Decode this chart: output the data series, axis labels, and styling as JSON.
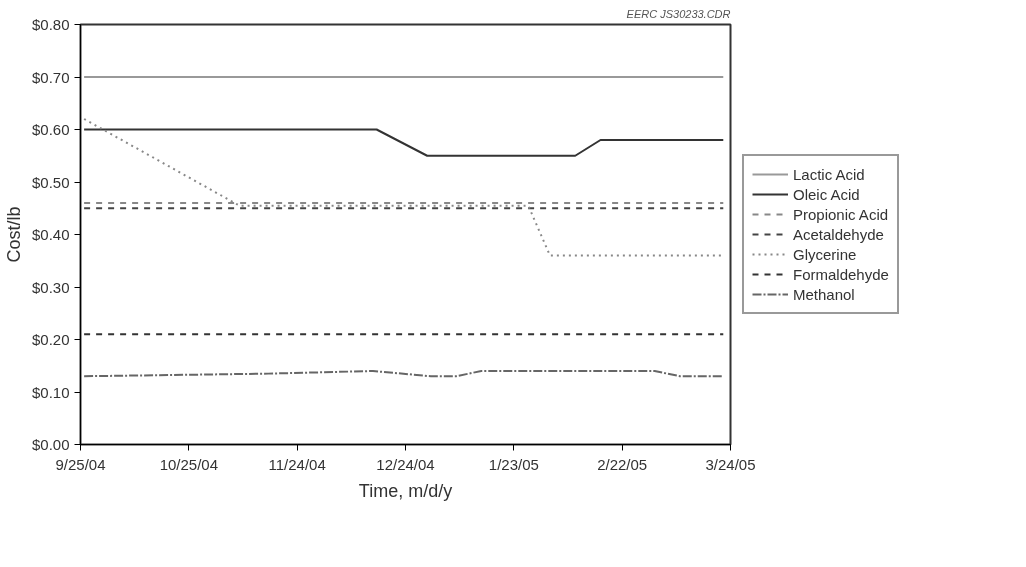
{
  "chart_data": {
    "type": "line",
    "xlabel": "Time, m/d/y",
    "ylabel": "Cost/lb",
    "annotations": [
      "EERC JS30233.CDR"
    ],
    "xlim": [
      "2004-09-25",
      "2005-03-24"
    ],
    "xticks": [
      {
        "value": "2004-09-25",
        "label": "9/25/04"
      },
      {
        "value": "2004-10-25",
        "label": "10/25/04"
      },
      {
        "value": "2004-11-24",
        "label": "11/24/04"
      },
      {
        "value": "2004-12-24",
        "label": "12/24/04"
      },
      {
        "value": "2005-01-23",
        "label": "1/23/05"
      },
      {
        "value": "2005-02-22",
        "label": "2/22/05"
      },
      {
        "value": "2005-03-24",
        "label": "3/24/05"
      }
    ],
    "ylim": [
      0,
      0.8
    ],
    "yticks": [
      {
        "value": 0,
        "label": "$0.00"
      },
      {
        "value": 0.1,
        "label": "$0.10"
      },
      {
        "value": 0.2,
        "label": "$0.20"
      },
      {
        "value": 0.3,
        "label": "$0.30"
      },
      {
        "value": 0.4,
        "label": "$0.40"
      },
      {
        "value": 0.5,
        "label": "$0.50"
      },
      {
        "value": 0.6,
        "label": "$0.60"
      },
      {
        "value": 0.7,
        "label": "$0.70"
      },
      {
        "value": 0.8,
        "label": "$0.80"
      }
    ],
    "grid": false,
    "legend": "right",
    "marker": "none",
    "series": [
      {
        "name": "Lactic Acid",
        "color": "#999999",
        "line_style": "solid",
        "x": [
          "2004-09-26",
          "2005-03-22"
        ],
        "values": [
          0.7,
          0.7
        ]
      },
      {
        "name": "Oleic Acid",
        "color": "#333333",
        "line_style": "solid",
        "x": [
          "2004-09-26",
          "2004-12-16",
          "2004-12-30",
          "2005-02-09",
          "2005-02-16",
          "2005-03-22"
        ],
        "values": [
          0.6,
          0.6,
          0.55,
          0.55,
          0.58,
          0.58
        ]
      },
      {
        "name": "Propionic Acid",
        "color": "#888888",
        "line_style": "dashed",
        "x": [
          "2004-09-26",
          "2005-03-22"
        ],
        "values": [
          0.46,
          0.46
        ]
      },
      {
        "name": "Acetaldehyde",
        "color": "#444444",
        "line_style": "dashed",
        "x": [
          "2004-09-26",
          "2005-03-22"
        ],
        "values": [
          0.45,
          0.45
        ]
      },
      {
        "name": "Glycerine",
        "color": "#888888",
        "line_style": "dotted",
        "x": [
          "2004-09-26",
          "2004-11-08",
          "2005-01-27",
          "2005-02-02",
          "2005-03-22"
        ],
        "values": [
          0.62,
          0.455,
          0.455,
          0.36,
          0.36
        ]
      },
      {
        "name": "Formaldehyde",
        "color": "#333333",
        "line_style": "dashed",
        "x": [
          "2004-09-26",
          "2005-03-22"
        ],
        "values": [
          0.21,
          0.21
        ]
      },
      {
        "name": "Methanol",
        "color": "#666666",
        "line_style": "dashdot",
        "x": [
          "2004-09-26",
          "2004-11-16",
          "2004-12-15",
          "2004-12-31",
          "2005-01-07",
          "2005-01-14",
          "2005-03-03",
          "2005-03-10",
          "2005-03-22"
        ],
        "values": [
          0.13,
          0.135,
          0.14,
          0.13,
          0.13,
          0.14,
          0.14,
          0.13,
          0.13
        ]
      }
    ]
  }
}
